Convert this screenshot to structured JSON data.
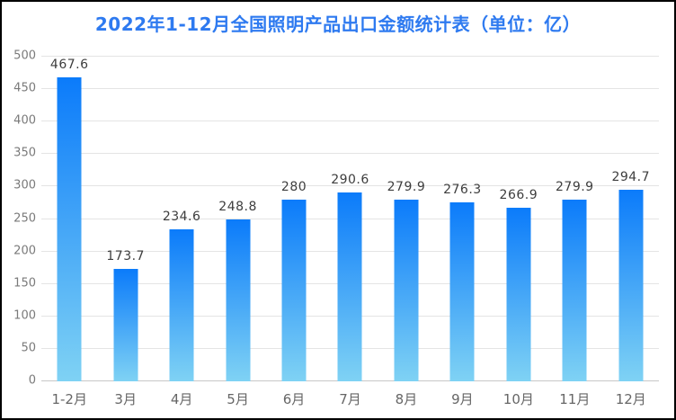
{
  "page": {
    "background": "#ffffff",
    "border_color": "#000000"
  },
  "chart_data": {
    "type": "bar",
    "title": "2022年1-12月全国照明产品出口金额统计表（单位：亿）",
    "xlabel": "",
    "ylabel": "",
    "categories": [
      "1-2月",
      "3月",
      "4月",
      "5月",
      "6月",
      "7月",
      "8月",
      "9月",
      "10月",
      "11月",
      "12月"
    ],
    "values": [
      467.6,
      173.7,
      234.6,
      248.8,
      280,
      290.6,
      279.9,
      276.3,
      266.9,
      279.9,
      294.7
    ],
    "value_labels": [
      "467.6",
      "173.7",
      "234.6",
      "248.8",
      "280",
      "290.6",
      "279.9",
      "276.3",
      "266.9",
      "279.9",
      "294.7"
    ],
    "ylim": [
      0,
      500
    ],
    "yticks": [
      0,
      50,
      100,
      150,
      200,
      250,
      300,
      350,
      400,
      450,
      500
    ],
    "grid": true,
    "legend": "none",
    "colors": {
      "title": "#2e7af0",
      "bar_gradient_top": "#0b7bfa",
      "bar_gradient_bottom": "#7fd2f4",
      "gridline": "#e4e4e4",
      "axis_line": "#c7c7c7",
      "ytick_label": "#7a7a7a",
      "xtick_label": "#666666",
      "value_label": "#3d3d3d"
    }
  }
}
